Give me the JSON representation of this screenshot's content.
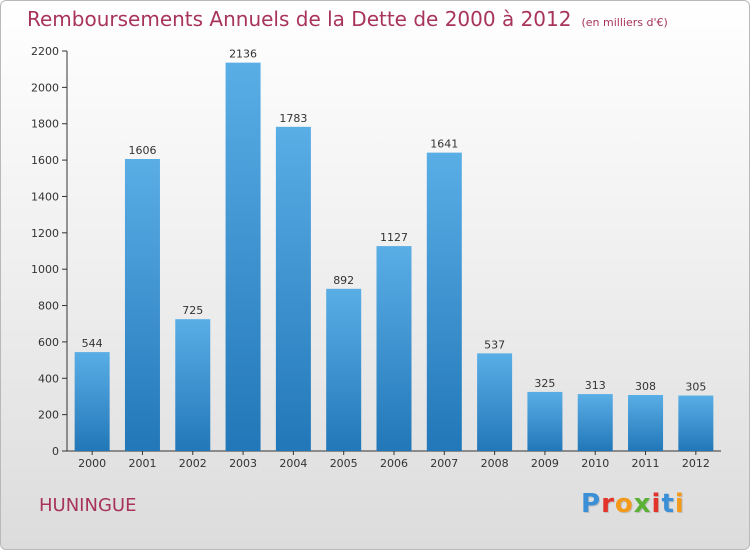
{
  "header": {
    "title": "Remboursements Annuels de la Dette de 2000 à 2012",
    "units": "(en milliers d'€)"
  },
  "footer": {
    "city": "HUNINGUE",
    "logo": "Proxiti",
    "logo_letters": [
      {
        "char": "P",
        "color": "#3b8fd6"
      },
      {
        "char": "r",
        "color": "#e2342b"
      },
      {
        "char": "o",
        "color": "#f39a1b"
      },
      {
        "char": "x",
        "color": "#5bb135"
      },
      {
        "char": "i",
        "color": "#e2342b"
      },
      {
        "char": "t",
        "color": "#3b8fd6"
      },
      {
        "char": "i",
        "color": "#f39a1b"
      }
    ]
  },
  "colors": {
    "bar_top": "#5aaee6",
    "bar_bottom": "#2277b8",
    "axis": "#333333",
    "grid": "#d0d0d0"
  },
  "chart_data": {
    "type": "bar",
    "title": "Remboursements Annuels de la Dette de 2000 à 2012",
    "xlabel": "",
    "ylabel": "",
    "categories": [
      "2000",
      "2001",
      "2002",
      "2003",
      "2004",
      "2005",
      "2006",
      "2007",
      "2008",
      "2009",
      "2010",
      "2011",
      "2012"
    ],
    "values": [
      544,
      1606,
      725,
      2136,
      1783,
      892,
      1127,
      1641,
      537,
      325,
      313,
      308,
      305
    ],
    "ylim": [
      0,
      2200
    ],
    "yticks": [
      0,
      200,
      400,
      600,
      800,
      1000,
      1200,
      1400,
      1600,
      1800,
      2000,
      2200
    ],
    "grid": false,
    "legend": "none"
  }
}
